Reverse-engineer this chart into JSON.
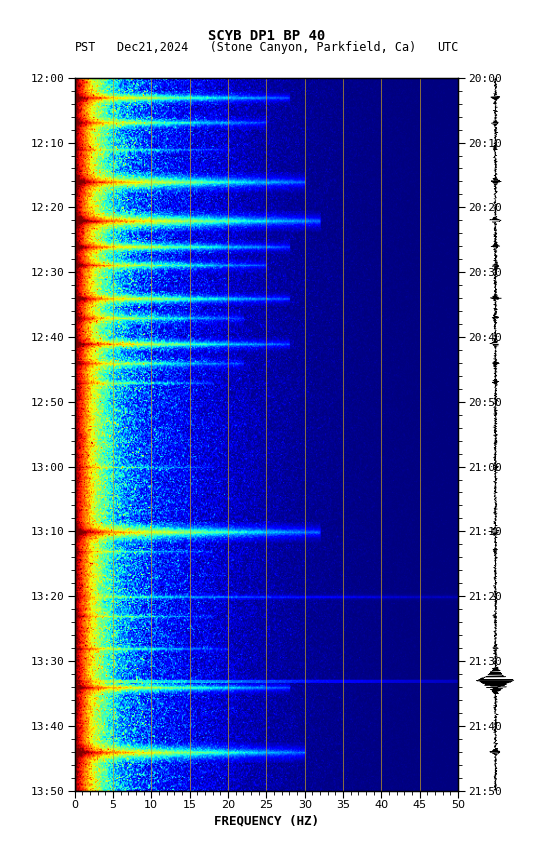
{
  "title_line1": "SCYB DP1 BP 40",
  "title_line2_left": "PST",
  "title_line2_mid": "Dec21,2024   (Stone Canyon, Parkfield, Ca)",
  "title_line2_right": "UTC",
  "xlabel": "FREQUENCY (HZ)",
  "freq_min": 0,
  "freq_max": 50,
  "pst_ticks": [
    "12:00",
    "12:10",
    "12:20",
    "12:30",
    "12:40",
    "12:50",
    "13:00",
    "13:10",
    "13:20",
    "13:30",
    "13:40",
    "13:50"
  ],
  "utc_ticks": [
    "20:00",
    "20:10",
    "20:20",
    "20:30",
    "20:40",
    "20:50",
    "21:00",
    "21:10",
    "21:20",
    "21:30",
    "21:40",
    "21:50"
  ],
  "freq_ticks": [
    0,
    5,
    10,
    15,
    20,
    25,
    30,
    35,
    40,
    45,
    50
  ],
  "vert_grid_freqs": [
    5,
    10,
    15,
    20,
    25,
    30,
    35,
    40,
    45
  ],
  "background_color": "#ffffff",
  "colormap": "jet",
  "event_minutes": [
    3,
    7,
    11,
    16,
    22,
    26,
    29,
    34,
    37,
    41,
    44,
    47,
    60,
    70,
    73,
    80,
    83,
    88,
    94,
    104
  ],
  "event_strengths": [
    1.5,
    1.2,
    0.6,
    1.8,
    2.0,
    1.5,
    1.2,
    1.5,
    1.0,
    1.5,
    1.0,
    0.8,
    0.5,
    1.8,
    0.6,
    0.4,
    0.6,
    0.8,
    1.5,
    1.8
  ],
  "event_freq_cutoffs": [
    28,
    25,
    20,
    30,
    32,
    28,
    25,
    28,
    22,
    28,
    22,
    18,
    18,
    32,
    18,
    50,
    18,
    20,
    28,
    30
  ],
  "event_widths": [
    2,
    2,
    1,
    3,
    3,
    2,
    2,
    2,
    2,
    2,
    2,
    1,
    1,
    3,
    1,
    1,
    1,
    1,
    2,
    3
  ]
}
